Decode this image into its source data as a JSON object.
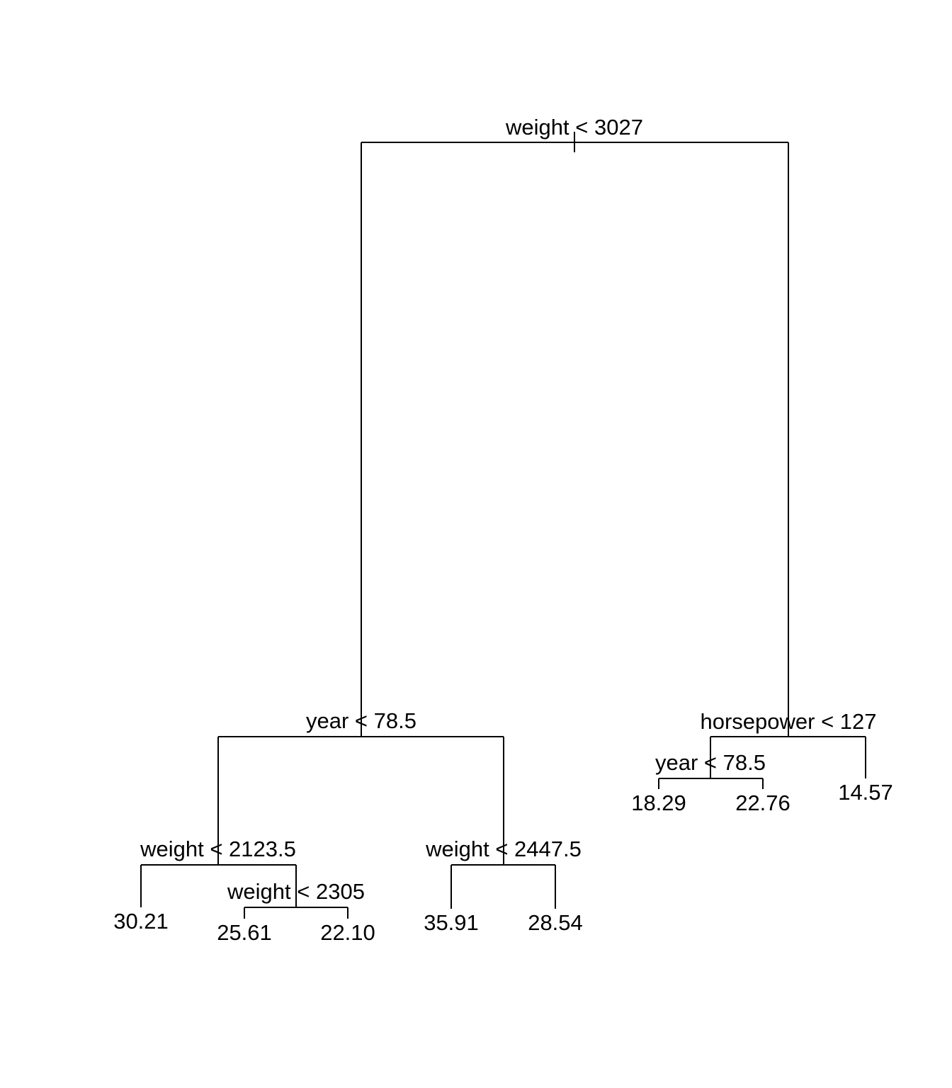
{
  "tree": {
    "root_split": "weight < 3027",
    "left_split": "year < 78.5",
    "left_left_split": "weight < 2123.5",
    "left_left_right_split": "weight < 2305",
    "left_right_split": "weight < 2447.5",
    "right_split": "horsepower < 127",
    "right_left_split": "year < 78.5",
    "leaves": [
      "30.21",
      "25.61",
      "22.10",
      "35.91",
      "28.54",
      "18.29",
      "22.76",
      "14.57"
    ]
  }
}
